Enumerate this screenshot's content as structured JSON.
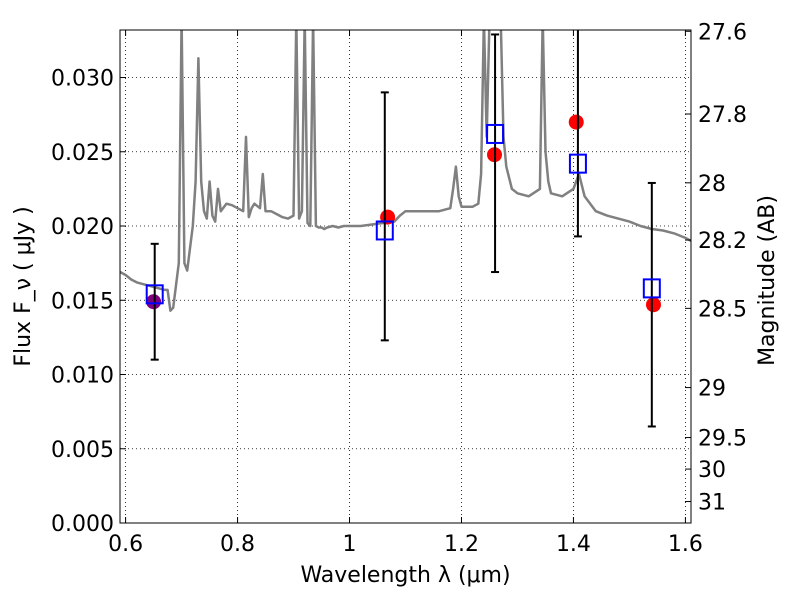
{
  "chart_data": {
    "type": "scatter",
    "xlabel": "Wavelength  λ (μm)",
    "ylabel": "Flux  F_ν  ( μJy )",
    "y2label": "Magnitude (AB)",
    "xlim": [
      0.59,
      1.61
    ],
    "ylim": [
      0.0,
      0.0332
    ],
    "grid": true,
    "x_ticks": [
      {
        "value": 0.6,
        "label": "0.6"
      },
      {
        "value": 0.8,
        "label": "0.8"
      },
      {
        "value": 1.0,
        "label": "1"
      },
      {
        "value": 1.2,
        "label": "1.2"
      },
      {
        "value": 1.4,
        "label": "1.4"
      },
      {
        "value": 1.6,
        "label": "1.6"
      }
    ],
    "y_ticks": [
      {
        "value": 0.0,
        "label": "0.000"
      },
      {
        "value": 0.005,
        "label": "0.005"
      },
      {
        "value": 0.01,
        "label": "0.010"
      },
      {
        "value": 0.015,
        "label": "0.015"
      },
      {
        "value": 0.02,
        "label": "0.020"
      },
      {
        "value": 0.025,
        "label": "0.025"
      },
      {
        "value": 0.03,
        "label": "0.030"
      }
    ],
    "y2_ticks": [
      {
        "mag": 27.6,
        "label": "27.6"
      },
      {
        "mag": 27.8,
        "label": "27.8"
      },
      {
        "mag": 28.0,
        "label": "28"
      },
      {
        "mag": 28.2,
        "label": "28.2"
      },
      {
        "mag": 28.5,
        "label": "28.5"
      },
      {
        "mag": 29.0,
        "label": "29"
      },
      {
        "mag": 29.5,
        "label": "29.5"
      },
      {
        "mag": 30.0,
        "label": "30"
      },
      {
        "mag": 31.0,
        "label": "31"
      }
    ],
    "template_spectrum": {
      "color": "#808080",
      "x": [
        0.59,
        0.6,
        0.61,
        0.62,
        0.63,
        0.64,
        0.65,
        0.66,
        0.67,
        0.675,
        0.68,
        0.685,
        0.69,
        0.695,
        0.7,
        0.705,
        0.71,
        0.72,
        0.725,
        0.73,
        0.735,
        0.74,
        0.745,
        0.75,
        0.755,
        0.76,
        0.765,
        0.77,
        0.78,
        0.79,
        0.8,
        0.81,
        0.815,
        0.82,
        0.825,
        0.83,
        0.84,
        0.845,
        0.85,
        0.86,
        0.87,
        0.88,
        0.89,
        0.9,
        0.905,
        0.91,
        0.915,
        0.92,
        0.925,
        0.93,
        0.935,
        0.94,
        0.945,
        0.95,
        0.955,
        0.96,
        0.97,
        0.98,
        0.99,
        1.0,
        1.02,
        1.04,
        1.06,
        1.08,
        1.09,
        1.1,
        1.12,
        1.14,
        1.16,
        1.18,
        1.185,
        1.19,
        1.195,
        1.2,
        1.21,
        1.22,
        1.23,
        1.235,
        1.24,
        1.245,
        1.25,
        1.26,
        1.27,
        1.275,
        1.28,
        1.29,
        1.3,
        1.32,
        1.34,
        1.345,
        1.35,
        1.355,
        1.36,
        1.38,
        1.4,
        1.41,
        1.42,
        1.44,
        1.46,
        1.48,
        1.5,
        1.52,
        1.54,
        1.56,
        1.58,
        1.6,
        1.61
      ],
      "y": [
        0.0169,
        0.0167,
        0.0164,
        0.0162,
        0.0161,
        0.016,
        0.0159,
        0.0158,
        0.0157,
        0.0157,
        0.0143,
        0.0145,
        0.016,
        0.0175,
        0.034,
        0.0175,
        0.017,
        0.02,
        0.023,
        0.0313,
        0.023,
        0.021,
        0.0205,
        0.023,
        0.0207,
        0.0203,
        0.0225,
        0.021,
        0.0215,
        0.0214,
        0.0212,
        0.021,
        0.026,
        0.0206,
        0.0212,
        0.0215,
        0.0212,
        0.0235,
        0.021,
        0.021,
        0.0208,
        0.0206,
        0.0205,
        0.0207,
        0.034,
        0.0205,
        0.021,
        0.034,
        0.0202,
        0.02,
        0.034,
        0.02,
        0.0199,
        0.0199,
        0.0198,
        0.0199,
        0.02,
        0.0199,
        0.02,
        0.02,
        0.02,
        0.0201,
        0.0202,
        0.0203,
        0.0207,
        0.021,
        0.021,
        0.021,
        0.021,
        0.0212,
        0.0225,
        0.024,
        0.022,
        0.0213,
        0.0213,
        0.0213,
        0.0215,
        0.0235,
        0.034,
        0.026,
        0.034,
        0.034,
        0.034,
        0.026,
        0.024,
        0.0225,
        0.0222,
        0.022,
        0.0225,
        0.034,
        0.025,
        0.023,
        0.0222,
        0.022,
        0.0225,
        0.0235,
        0.022,
        0.021,
        0.0207,
        0.0205,
        0.0203,
        0.02,
        0.0198,
        0.0197,
        0.0195,
        0.0192,
        0.019
      ]
    },
    "models": {
      "color": "#ff0000",
      "points": [
        {
          "x": 1.068,
          "y": 0.0206
        },
        {
          "x": 1.259,
          "y": 0.0248
        },
        {
          "x": 1.405,
          "y": 0.027
        },
        {
          "x": 1.543,
          "y": 0.0147
        }
      ]
    },
    "model_blue": {
      "color": "#800080",
      "points": [
        {
          "x": 0.65,
          "y": 0.0149
        }
      ]
    },
    "observed": {
      "color": "#0000ff",
      "points": [
        {
          "x": 0.652,
          "y": 0.0154,
          "lo": 0.011,
          "hi": 0.0188
        },
        {
          "x": 1.063,
          "y": 0.0197,
          "lo": 0.0123,
          "hi": 0.029
        },
        {
          "x": 1.26,
          "y": 0.0262,
          "lo": 0.0169,
          "hi": 0.0329
        },
        {
          "x": 1.408,
          "y": 0.0242,
          "lo": 0.0193,
          "hi": 0.034
        },
        {
          "x": 1.54,
          "y": 0.0158,
          "lo": 0.0065,
          "hi": 0.0229
        }
      ]
    }
  }
}
